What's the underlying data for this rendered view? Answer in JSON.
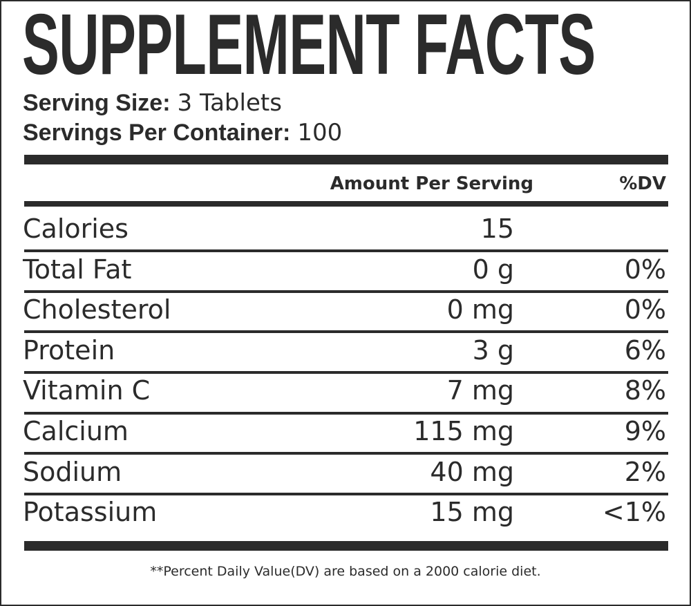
{
  "title": "SUPPLEMENT FACTS",
  "serving": {
    "size_label": "Serving Size:",
    "size_value": "3 Tablets",
    "per_container_label": "Servings Per Container:",
    "per_container_value": "100"
  },
  "header": {
    "amount": "Amount Per Serving",
    "dv": "%DV"
  },
  "rows": [
    {
      "name": "Calories",
      "amount": "15",
      "dv": ""
    },
    {
      "name": "Total Fat",
      "amount": "0 g",
      "dv": "0%"
    },
    {
      "name": "Cholesterol",
      "amount": "0 mg",
      "dv": "0%"
    },
    {
      "name": "Protein",
      "amount": "3 g",
      "dv": "6%"
    },
    {
      "name": "Vitamin C",
      "amount": "7 mg",
      "dv": "8%"
    },
    {
      "name": "Calcium",
      "amount": "115 mg",
      "dv": "9%"
    },
    {
      "name": "Sodium",
      "amount": "40 mg",
      "dv": "2%"
    },
    {
      "name": "Potassium",
      "amount": "15 mg",
      "dv": "<1%"
    }
  ],
  "footnote": "**Percent Daily Value(DV) are based on a 2000 calorie diet.",
  "colors": {
    "ink": "#2b2b2b",
    "background": "#ffffff"
  }
}
